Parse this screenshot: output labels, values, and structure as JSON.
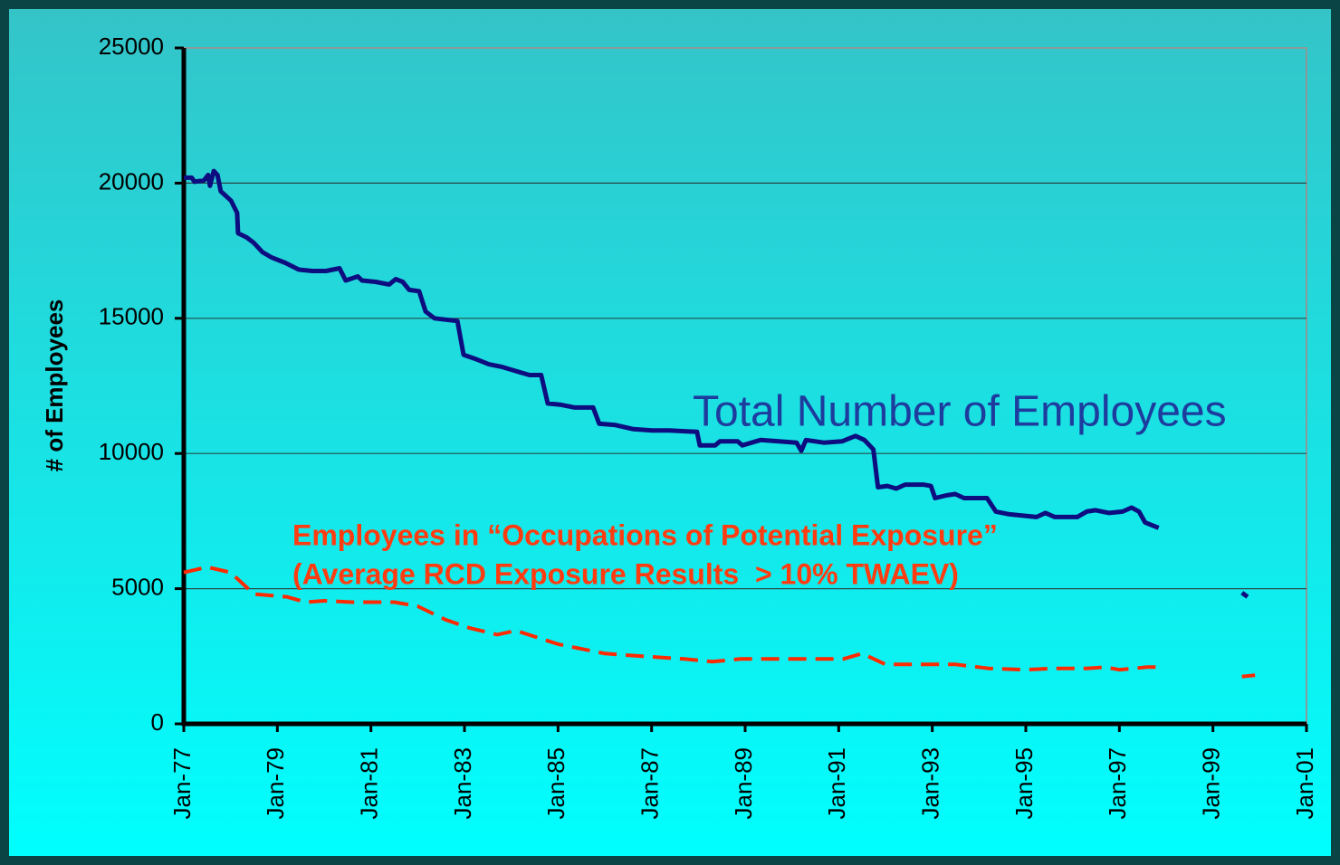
{
  "chart_data": {
    "type": "line",
    "ylabel": "# of Employees",
    "xlim": [
      1977,
      2001
    ],
    "xticks": [
      {
        "value": 1977,
        "label": "Jan-77"
      },
      {
        "value": 1979,
        "label": "Jan-79"
      },
      {
        "value": 1981,
        "label": "Jan-81"
      },
      {
        "value": 1983,
        "label": "Jan-83"
      },
      {
        "value": 1985,
        "label": "Jan-85"
      },
      {
        "value": 1987,
        "label": "Jan-87"
      },
      {
        "value": 1989,
        "label": "Jan-89"
      },
      {
        "value": 1991,
        "label": "Jan-91"
      },
      {
        "value": 1993,
        "label": "Jan-93"
      },
      {
        "value": 1995,
        "label": "Jan-95"
      },
      {
        "value": 1997,
        "label": "Jan-97"
      },
      {
        "value": 1999,
        "label": "Jan-99"
      },
      {
        "value": 2001,
        "label": "Jan-01"
      }
    ],
    "ylim": [
      0,
      25000
    ],
    "yticks": [
      0,
      5000,
      10000,
      15000,
      20000,
      25000
    ],
    "grid": true,
    "series": [
      {
        "name": "Total Number of Employees",
        "color": "#0d0d80",
        "style": "solid",
        "x": [
          1977.0,
          1977.17,
          1977.23,
          1977.43,
          1977.52,
          1977.56,
          1977.64,
          1977.72,
          1977.79,
          1978.01,
          1978.14,
          1978.16,
          1978.34,
          1978.49,
          1978.68,
          1978.88,
          1979.17,
          1979.46,
          1979.75,
          1980.04,
          1980.33,
          1980.46,
          1980.72,
          1980.81,
          1981.1,
          1981.39,
          1981.53,
          1981.68,
          1981.82,
          1982.03,
          1982.17,
          1982.36,
          1982.85,
          1982.98,
          1983.23,
          1983.52,
          1983.81,
          1984.1,
          1984.39,
          1984.64,
          1984.78,
          1985.07,
          1985.36,
          1985.75,
          1985.88,
          1986.23,
          1986.61,
          1987.01,
          1987.39,
          1987.97,
          1988.03,
          1988.36,
          1988.46,
          1988.84,
          1988.94,
          1989.33,
          1989.72,
          1990.1,
          1990.2,
          1990.3,
          1990.68,
          1991.07,
          1991.36,
          1991.55,
          1991.74,
          1991.84,
          1992.04,
          1992.23,
          1992.42,
          1992.62,
          1992.81,
          1992.97,
          1993.06,
          1993.3,
          1993.49,
          1993.68,
          1993.97,
          1994.17,
          1994.36,
          1994.65,
          1994.94,
          1995.23,
          1995.42,
          1995.62,
          1996.1,
          1996.3,
          1996.49,
          1996.78,
          1997.07,
          1997.26,
          1997.42,
          1997.55,
          1997.84,
          1998.5,
          1999.62,
          1999.74
        ],
        "values": [
          20200,
          20200,
          20050,
          20100,
          20300,
          19900,
          20450,
          20300,
          19700,
          19350,
          18900,
          18150,
          18000,
          17800,
          17450,
          17250,
          17050,
          16800,
          16750,
          16750,
          16850,
          16400,
          16550,
          16400,
          16350,
          16250,
          16450,
          16350,
          16050,
          16000,
          15250,
          15000,
          14900,
          13650,
          13500,
          13300,
          13200,
          13050,
          12900,
          12900,
          11850,
          11800,
          11700,
          11700,
          11100,
          11050,
          10900,
          10850,
          10850,
          10800,
          10300,
          10300,
          10450,
          10450,
          10300,
          10500,
          10450,
          10400,
          10100,
          10500,
          10400,
          10450,
          10650,
          10500,
          10150,
          8750,
          8800,
          8700,
          8850,
          8850,
          8850,
          8800,
          8350,
          8450,
          8500,
          8350,
          8350,
          8350,
          7850,
          7750,
          7700,
          7650,
          7800,
          7650,
          7650,
          7850,
          7900,
          7800,
          7850,
          8000,
          7850,
          7450,
          7250,
          null,
          4850,
          4700
        ]
      },
      {
        "name": "Employees in “Occupations of Potential Exposure”",
        "color": "#ff2a00",
        "style": "dashed",
        "x": [
          1977.0,
          1977.5,
          1978.0,
          1978.5,
          1979.2,
          1979.6,
          1980.0,
          1980.6,
          1981.5,
          1982.0,
          1982.6,
          1983.1,
          1983.7,
          1984.1,
          1985.0,
          1986.0,
          1986.8,
          1987.7,
          1988.3,
          1988.9,
          1990.0,
          1991.1,
          1991.5,
          1992.0,
          1993.5,
          1994.2,
          1995.0,
          1995.6,
          1996.3,
          1996.7,
          1997.0,
          1997.6,
          1997.9,
          1998.5,
          1999.62,
          1999.9
        ],
        "values": [
          5600,
          5800,
          5600,
          4800,
          4700,
          4500,
          4550,
          4500,
          4500,
          4350,
          3850,
          3550,
          3300,
          3450,
          2950,
          2600,
          2500,
          2400,
          2300,
          2400,
          2400,
          2400,
          2600,
          2200,
          2200,
          2050,
          2000,
          2050,
          2050,
          2100,
          2000,
          2100,
          2100,
          null,
          1750,
          1800
        ]
      }
    ],
    "annotations": [
      {
        "text": "Total Number of Employees",
        "color": "#1d3c9e"
      },
      {
        "text": "Employees in “Occupations of Potential Exposure”",
        "color": "#ff3c10"
      },
      {
        "text": "(Average RCD Exposure Results  > 10% TWAEV)",
        "color": "#ff3c10"
      }
    ]
  }
}
